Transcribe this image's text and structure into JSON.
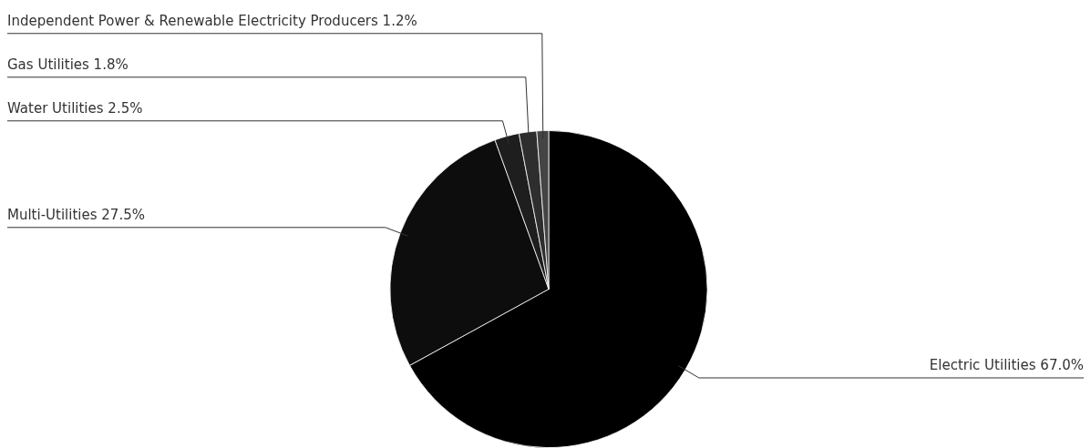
{
  "chart_data": {
    "type": "pie",
    "categories": [
      "Electric Utilities",
      "Multi-Utilities",
      "Water Utilities",
      "Gas Utilities",
      "Independent Power & Renewable Electricity Producers"
    ],
    "values": [
      67.0,
      27.5,
      2.5,
      1.8,
      1.2
    ],
    "colors": [
      "#000000",
      "#0d0d0d",
      "#1e1e1e",
      "#2e2e2e",
      "#444444"
    ],
    "value_labels": [
      "67.0%",
      "27.5%",
      "2.5%",
      "1.8%",
      "1.2%"
    ]
  }
}
